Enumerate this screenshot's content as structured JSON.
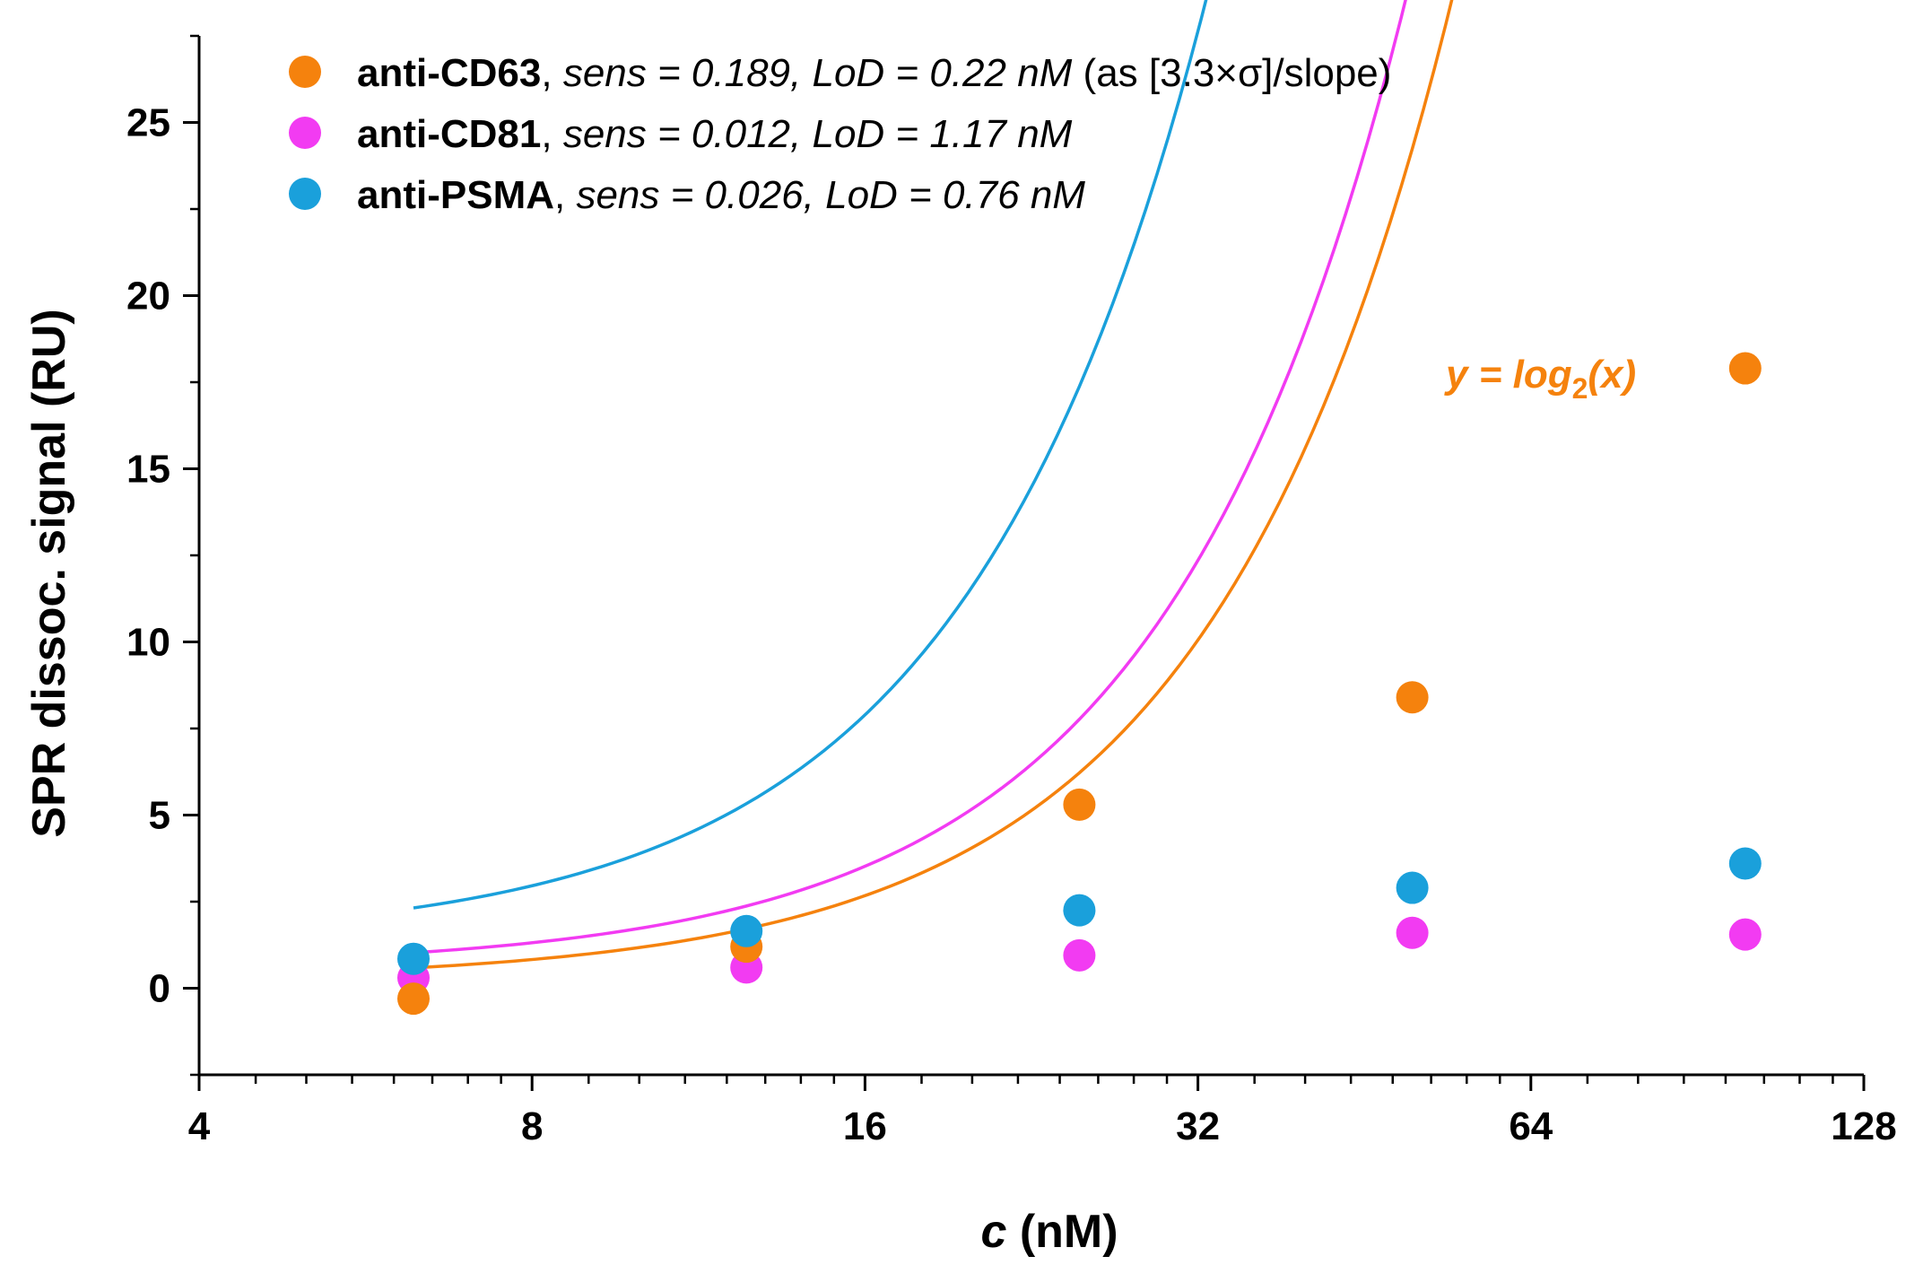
{
  "chart_data": {
    "type": "scatter",
    "title": "",
    "xlabel_var": "c",
    "xlabel_unit": " (nM)",
    "ylabel": "SPR dissoc. signal (RU)",
    "xscale": "log2",
    "xlim": [
      4,
      128
    ],
    "ylim": [
      -2.5,
      27.5
    ],
    "xticks": [
      4,
      8,
      16,
      32,
      64,
      128
    ],
    "xtick_labels": [
      "4",
      "8",
      "16",
      "32",
      "64",
      "128"
    ],
    "yticks": [
      0,
      5,
      10,
      15,
      20,
      25
    ],
    "ytick_labels": [
      "0",
      "5",
      "10",
      "15",
      "20",
      "25"
    ],
    "legend_position": "top-left",
    "series": [
      {
        "name": "anti-CD63",
        "color": "#F5820D",
        "legend_sep": ",  ",
        "legend_stats": "sens = 0.189, LoD = 0.22 nM",
        "legend_note": " (as [3.3×σ]/slope)",
        "x": [
          6.25,
          12.5,
          25,
          50,
          100
        ],
        "y": [
          -0.3,
          1.2,
          5.3,
          8.4,
          17.9
        ],
        "fit": {
          "a": 0.213,
          "b": 0.00961,
          "x_start": 6.25,
          "x_end": 100
        }
      },
      {
        "name": "anti-CD81",
        "color": "#F23BF2",
        "legend_sep": ",  ",
        "legend_stats": "sens = 0.012, LoD = 1.17 nM",
        "legend_note": "",
        "x": [
          6.25,
          12.5,
          25,
          50,
          100
        ],
        "y": [
          0.3,
          0.6,
          0.95,
          1.6,
          1.55
        ],
        "fit": {
          "a": 0.577,
          "b": 0.0115,
          "x_start": 6.25,
          "x_end": 100
        }
      },
      {
        "name": "anti-PSMA",
        "color": "#1AA0DB",
        "legend_sep": ", ",
        "legend_stats": "sens = 0.026, LoD = 0.76 nM",
        "legend_note": "",
        "x": [
          6.25,
          12.5,
          25,
          50,
          100
        ],
        "y": [
          0.85,
          1.65,
          2.25,
          2.9,
          3.6
        ],
        "fit": {
          "a": 1.314,
          "b": 0.0257,
          "x_start": 6.25,
          "x_end": 100
        }
      }
    ],
    "annotation": {
      "prefix": "y = log",
      "subscript": "2",
      "suffix": "(x)",
      "color": "#F5820D"
    }
  }
}
